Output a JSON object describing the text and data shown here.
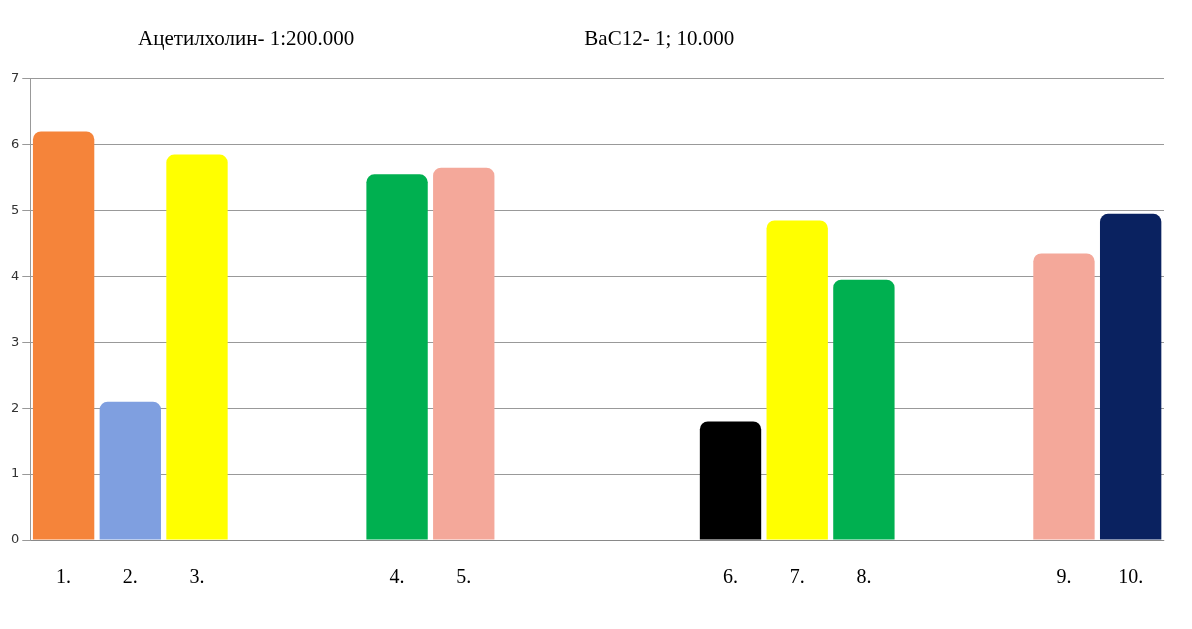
{
  "chart_data": {
    "type": "bar",
    "annotations": [
      "Ацетилхолин- 1:200.000",
      "BaC12- 1; 10.000"
    ],
    "categories": [
      "1.",
      "2.",
      "3.",
      null,
      null,
      "4.",
      "5.",
      null,
      null,
      null,
      "6.",
      "7.",
      "8.",
      null,
      null,
      "9.",
      "10."
    ],
    "values": [
      6.2,
      2.1,
      5.85,
      null,
      null,
      5.55,
      5.65,
      null,
      null,
      null,
      1.8,
      4.85,
      3.95,
      null,
      null,
      4.35,
      4.95
    ],
    "colors": [
      "#f5843a",
      "#7f9fe0",
      "#ffff00",
      null,
      null,
      "#00b050",
      "#f4a89a",
      null,
      null,
      null,
      "#000000",
      "#ffff00",
      "#00b050",
      null,
      null,
      "#f4a89a",
      "#0a2260"
    ],
    "ylim": [
      0,
      7
    ],
    "yticks": [
      0,
      1,
      2,
      3,
      4,
      5,
      6,
      7
    ],
    "grid": "y",
    "legend": false
  }
}
